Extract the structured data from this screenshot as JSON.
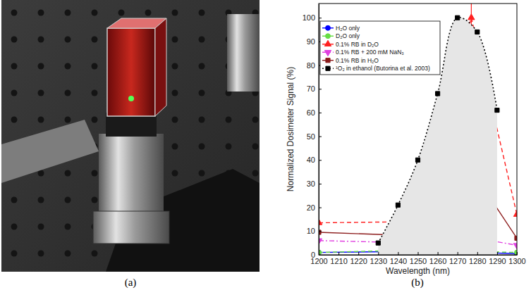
{
  "panel_labels": [
    "(a)",
    "(b)"
  ],
  "chart_data": {
    "type": "line",
    "x_label": "Wavelength (nm)",
    "y_label": "Normalized Dosimeter Signal (%)",
    "xlim": [
      1200,
      1300
    ],
    "xticks": [
      1200,
      1210,
      1220,
      1230,
      1240,
      1250,
      1260,
      1270,
      1280,
      1290,
      1300
    ],
    "ylim": [
      0,
      106
    ],
    "yticks": [
      0,
      10,
      20,
      30,
      40,
      50,
      60,
      70,
      80,
      90,
      100
    ],
    "legend": "upper left",
    "grid": false,
    "series": [
      {
        "name": "H₂O only",
        "color": "#0000ff",
        "line_style": "solid",
        "marker": "circle",
        "x": [
          1200,
          1250,
          1277,
          1300
        ],
        "values": [
          1,
          1.5,
          1,
          0.5
        ]
      },
      {
        "name": "D₂O only",
        "color": "#66dd44",
        "line_style": "dashed",
        "marker": "circle",
        "x": [
          1200,
          1250,
          1277,
          1300
        ],
        "values": [
          1,
          2,
          1.5,
          1
        ]
      },
      {
        "name": "0.1% RB in D₂O",
        "color": "#ff2020",
        "line_style": "dashed",
        "marker": "triangle",
        "x": [
          1200,
          1250,
          1277,
          1300
        ],
        "values": [
          13.5,
          14,
          100,
          17
        ],
        "errors": [
          null,
          null,
          7,
          null
        ]
      },
      {
        "name": "0.1% RB + 200 mM NaN₃",
        "color": "#e040e0",
        "line_style": "dashdot",
        "marker": "triangle-down",
        "x": [
          1200,
          1250,
          1277,
          1300
        ],
        "values": [
          6,
          5,
          7.5,
          4
        ]
      },
      {
        "name": "0.1% RB in H₂O",
        "color": "#8b1a1a",
        "line_style": "solid",
        "marker": "square",
        "x": [
          1200,
          1250,
          1277,
          1300
        ],
        "values": [
          9.5,
          8,
          36,
          7
        ]
      },
      {
        "name": "¹O₂ in ethanol (Butorina et al. 2003)",
        "color": "#000000",
        "line_style": "dotted",
        "marker": "square",
        "type": "area",
        "x": [
          1230,
          1240,
          1250,
          1260,
          1270,
          1280,
          1290
        ],
        "values": [
          5,
          21,
          40,
          68,
          100,
          94,
          61
        ]
      }
    ]
  }
}
